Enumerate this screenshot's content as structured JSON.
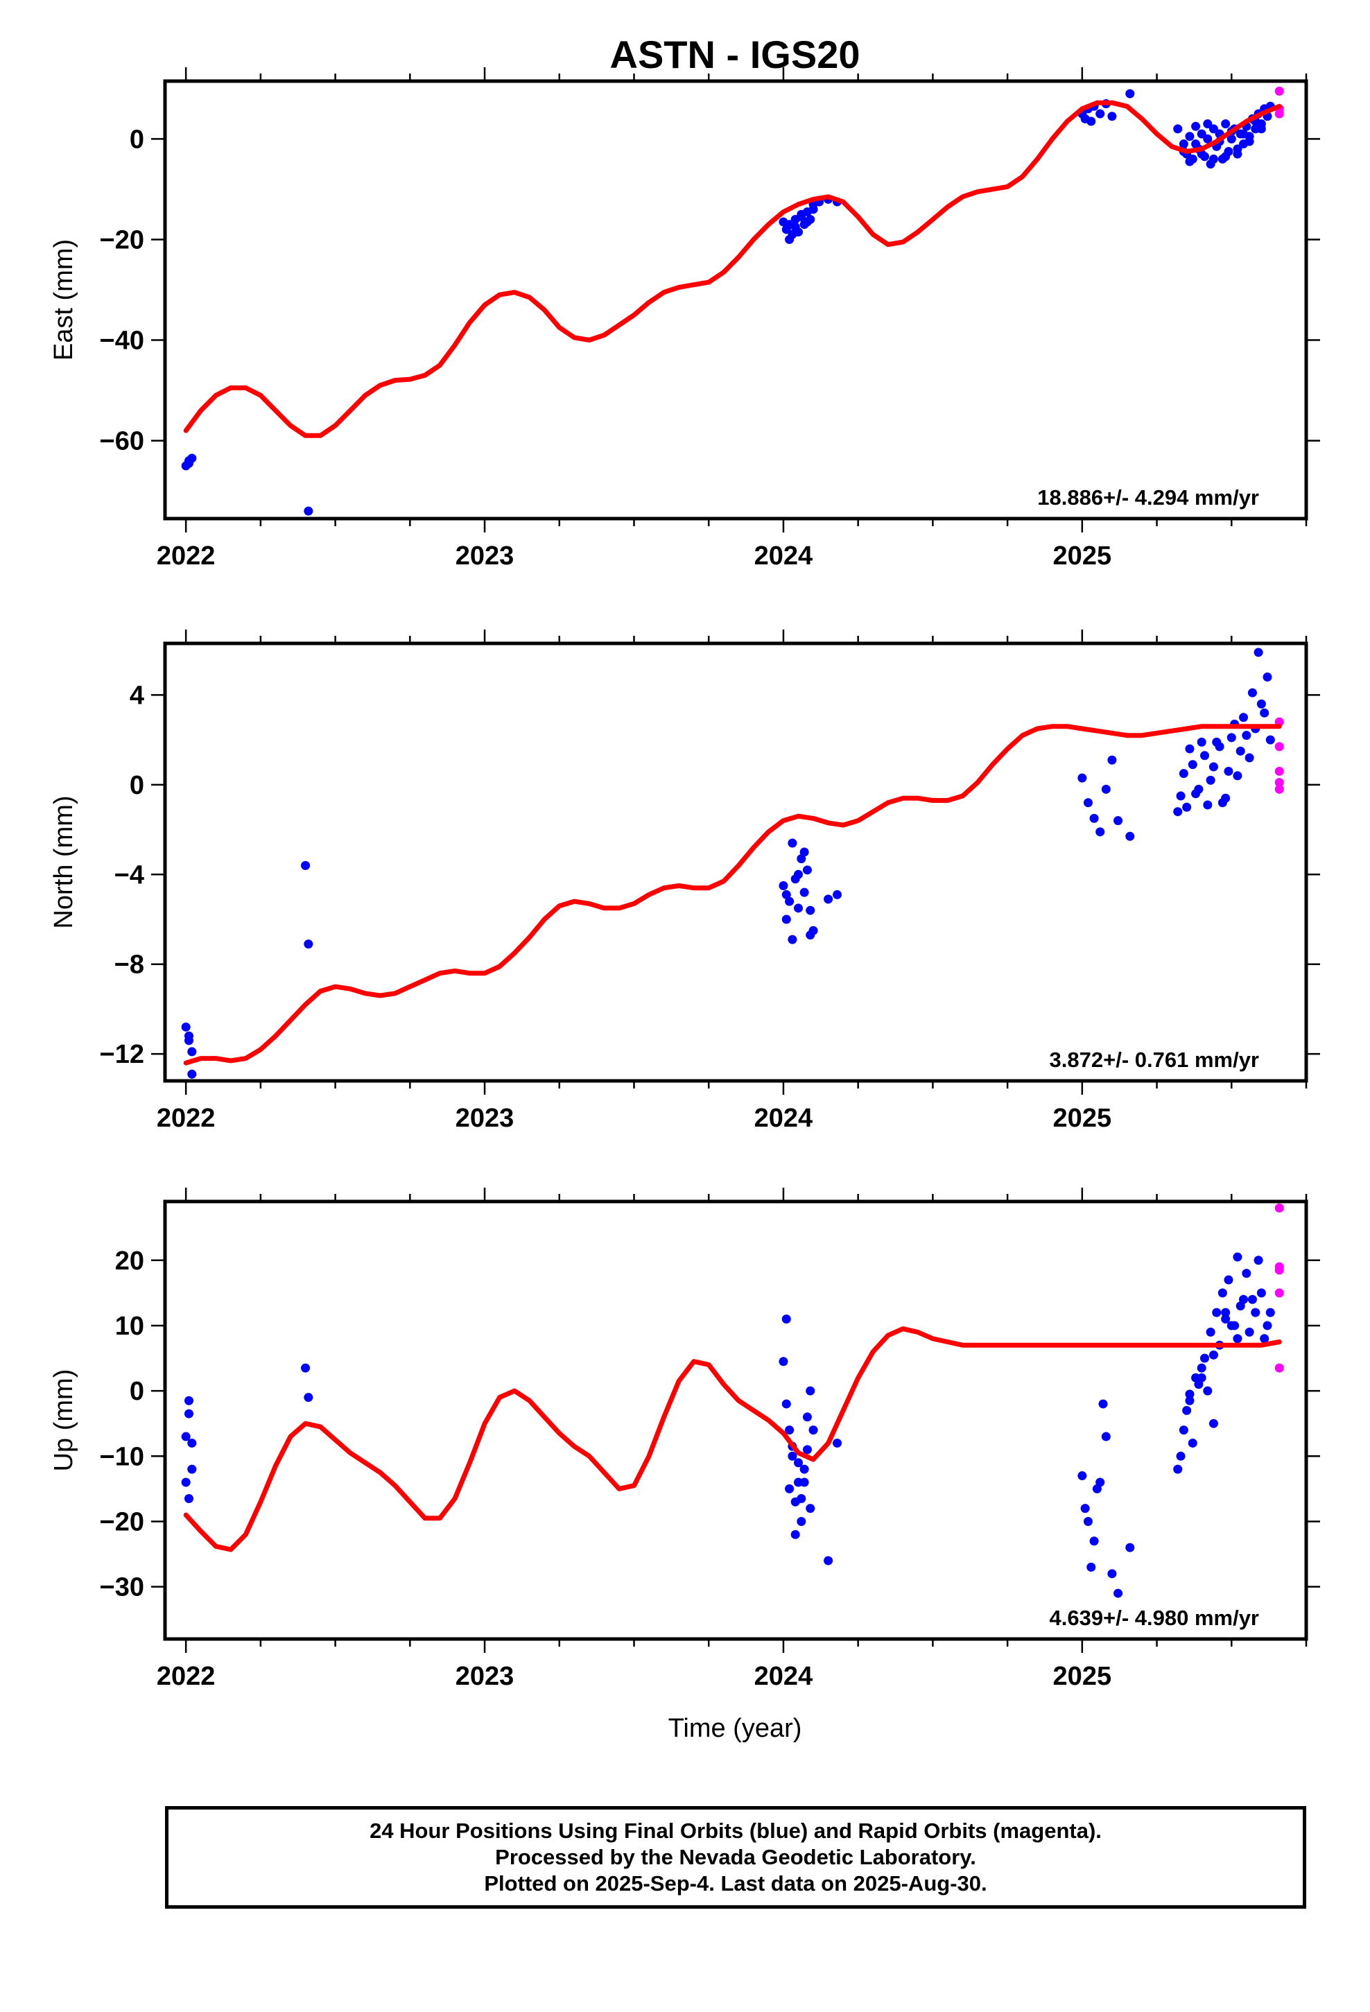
{
  "title": "ASTN - IGS20",
  "xlabel": "Time (year)",
  "footer": {
    "line1": "24 Hour Positions Using Final Orbits (blue) and Rapid Orbits (magenta).",
    "line2": "Processed by the Nevada Geodetic Laboratory.",
    "line3": "Plotted on 2025-Sep-4. Last data on 2025-Aug-30."
  },
  "colors": {
    "final": "#0000ff",
    "rapid": "#ff00ff",
    "model": "#ff0000"
  },
  "chart_data": [
    {
      "type": "scatter",
      "panel": "east",
      "ylabel": "East (mm)",
      "xlim": [
        2021.93,
        2025.75
      ],
      "ylim": [
        -75.5,
        11.5
      ],
      "xticks": [
        2022,
        2023,
        2024,
        2025
      ],
      "yticks": [
        -60,
        -40,
        -20,
        0
      ],
      "rate_label": "18.886+/- 4.294 mm/yr",
      "model": {
        "x": [
          2022.0,
          2022.05,
          2022.1,
          2022.15,
          2022.2,
          2022.25,
          2022.3,
          2022.35,
          2022.4,
          2022.45,
          2022.5,
          2022.55,
          2022.6,
          2022.65,
          2022.7,
          2022.75,
          2022.8,
          2022.85,
          2022.9,
          2022.95,
          2023.0,
          2023.05,
          2023.1,
          2023.15,
          2023.2,
          2023.25,
          2023.3,
          2023.35,
          2023.4,
          2023.45,
          2023.5,
          2023.55,
          2023.6,
          2023.65,
          2023.7,
          2023.75,
          2023.8,
          2023.85,
          2023.9,
          2023.95,
          2024.0,
          2024.05,
          2024.1,
          2024.15,
          2024.2,
          2024.25,
          2024.3,
          2024.35,
          2024.4,
          2024.45,
          2024.5,
          2024.55,
          2024.6,
          2024.65,
          2024.7,
          2024.75,
          2024.8,
          2024.85,
          2024.9,
          2024.95,
          2025.0,
          2025.05,
          2025.1,
          2025.15,
          2025.2,
          2025.25,
          2025.3,
          2025.35,
          2025.4,
          2025.45,
          2025.5,
          2025.55,
          2025.6,
          2025.66
        ],
        "y": [
          -58,
          -54,
          -51,
          -49.5,
          -49.5,
          -51,
          -54,
          -57,
          -59,
          -59,
          -57,
          -54,
          -51,
          -49,
          -48,
          -47.8,
          -47,
          -45,
          -41,
          -36.5,
          -33,
          -31,
          -30.5,
          -31.5,
          -34,
          -37.5,
          -39.5,
          -40,
          -39,
          -37,
          -35,
          -32.5,
          -30.5,
          -29.5,
          -29,
          -28.5,
          -26.5,
          -23.5,
          -20,
          -17,
          -14.5,
          -13,
          -12,
          -11.5,
          -12.5,
          -15.5,
          -19,
          -21,
          -20.5,
          -18.5,
          -16,
          -13.5,
          -11.5,
          -10.5,
          -10,
          -9.5,
          -7.5,
          -4,
          0,
          3.5,
          6,
          7.2,
          7.2,
          6.5,
          4,
          1,
          -1.5,
          -2.5,
          -2,
          -0.5,
          1.5,
          3.5,
          5,
          6.5
        ]
      },
      "points": {
        "x": [
          2022.0,
          2022.01,
          2022.02,
          2022.01,
          2022.41,
          2024.0,
          2024.01,
          2024.02,
          2024.03,
          2024.04,
          2024.05,
          2024.06,
          2024.07,
          2024.08,
          2024.09,
          2024.1,
          2024.02,
          2024.04,
          2024.06,
          2024.08,
          2024.1,
          2024.12,
          2024.15,
          2024.18,
          2025.0,
          2025.01,
          2025.02,
          2025.03,
          2025.04,
          2025.06,
          2025.08,
          2025.1,
          2025.16,
          2025.32,
          2025.34,
          2025.35,
          2025.36,
          2025.37,
          2025.38,
          2025.39,
          2025.4,
          2025.41,
          2025.42,
          2025.43,
          2025.44,
          2025.45,
          2025.46,
          2025.47,
          2025.48,
          2025.49,
          2025.5,
          2025.51,
          2025.52,
          2025.53,
          2025.54,
          2025.55,
          2025.56,
          2025.57,
          2025.58,
          2025.59,
          2025.6,
          2025.61,
          2025.62,
          2025.63,
          2025.34,
          2025.36,
          2025.38,
          2025.4,
          2025.42,
          2025.44,
          2025.46,
          2025.48,
          2025.5,
          2025.52,
          2025.54,
          2025.56,
          2025.58,
          2025.6
        ],
        "y": [
          -65,
          -64,
          -63.5,
          -64.5,
          -74,
          -16.5,
          -18,
          -17,
          -19,
          -16,
          -18.5,
          -15.5,
          -17,
          -14.5,
          -16,
          -14,
          -20,
          -17.5,
          -15,
          -16.5,
          -13,
          -12.5,
          -12,
          -12.5,
          5,
          4,
          6,
          3.5,
          6.5,
          5,
          7,
          4.5,
          9,
          2,
          -1,
          -3,
          0.5,
          -4,
          2.5,
          -2,
          1,
          -3.5,
          0,
          -5,
          2,
          -1.5,
          1,
          -4,
          3,
          -2.5,
          0,
          2,
          -3,
          1,
          -1,
          2.5,
          0.5,
          4,
          2,
          5,
          3,
          6,
          4.5,
          6.5,
          -2.5,
          -4.5,
          -1,
          -3,
          3,
          -4,
          -0.5,
          -3.5,
          1.5,
          -2,
          1,
          -0.5,
          3.5,
          2
        ]
      },
      "rapid": {
        "x": [
          2025.66,
          2025.66,
          2025.66
        ],
        "y": [
          9.5,
          6,
          5
        ]
      }
    },
    {
      "type": "scatter",
      "panel": "north",
      "ylabel": "North (mm)",
      "xlim": [
        2021.93,
        2025.75
      ],
      "ylim": [
        -13.2,
        6.3
      ],
      "xticks": [
        2022,
        2023,
        2024,
        2025
      ],
      "yticks": [
        -12,
        -8,
        -4,
        0,
        4
      ],
      "rate_label": "3.872+/- 0.761 mm/yr",
      "model": {
        "x": [
          2022.0,
          2022.05,
          2022.1,
          2022.15,
          2022.2,
          2022.25,
          2022.3,
          2022.35,
          2022.4,
          2022.45,
          2022.5,
          2022.55,
          2022.6,
          2022.65,
          2022.7,
          2022.75,
          2022.8,
          2022.85,
          2022.9,
          2022.95,
          2023.0,
          2023.05,
          2023.1,
          2023.15,
          2023.2,
          2023.25,
          2023.3,
          2023.35,
          2023.4,
          2023.45,
          2023.5,
          2023.55,
          2023.6,
          2023.65,
          2023.7,
          2023.75,
          2023.8,
          2023.85,
          2023.9,
          2023.95,
          2024.0,
          2024.05,
          2024.1,
          2024.15,
          2024.2,
          2024.25,
          2024.3,
          2024.35,
          2024.4,
          2024.45,
          2024.5,
          2024.55,
          2024.6,
          2024.65,
          2024.7,
          2024.75,
          2024.8,
          2024.85,
          2024.9,
          2024.95,
          2025.0,
          2025.05,
          2025.1,
          2025.15,
          2025.2,
          2025.25,
          2025.3,
          2025.35,
          2025.4,
          2025.45,
          2025.5,
          2025.55,
          2025.6,
          2025.66
        ],
        "y": [
          -12.4,
          -12.2,
          -12.2,
          -12.3,
          -12.2,
          -11.8,
          -11.2,
          -10.5,
          -9.8,
          -9.2,
          -9.0,
          -9.1,
          -9.3,
          -9.4,
          -9.3,
          -9.0,
          -8.7,
          -8.4,
          -8.3,
          -8.4,
          -8.4,
          -8.1,
          -7.5,
          -6.8,
          -6.0,
          -5.4,
          -5.2,
          -5.3,
          -5.5,
          -5.5,
          -5.3,
          -4.9,
          -4.6,
          -4.5,
          -4.6,
          -4.6,
          -4.3,
          -3.6,
          -2.8,
          -2.1,
          -1.6,
          -1.4,
          -1.5,
          -1.7,
          -1.8,
          -1.6,
          -1.2,
          -0.8,
          -0.6,
          -0.6,
          -0.7,
          -0.7,
          -0.5,
          0.1,
          0.9,
          1.6,
          2.2,
          2.5,
          2.6,
          2.6,
          2.5,
          2.4,
          2.3,
          2.2,
          2.2,
          2.3,
          2.4,
          2.5,
          2.6,
          2.6,
          2.6,
          2.6,
          2.6,
          2.6
        ]
      },
      "points": {
        "x": [
          2022.0,
          2022.01,
          2022.02,
          2022.01,
          2022.02,
          2022.4,
          2022.41,
          2024.0,
          2024.01,
          2024.02,
          2024.03,
          2024.04,
          2024.05,
          2024.06,
          2024.07,
          2024.08,
          2024.09,
          2024.1,
          2024.01,
          2024.03,
          2024.05,
          2024.07,
          2024.09,
          2024.15,
          2024.18,
          2025.0,
          2025.02,
          2025.04,
          2025.06,
          2025.08,
          2025.1,
          2025.12,
          2025.16,
          2025.32,
          2025.34,
          2025.36,
          2025.38,
          2025.4,
          2025.42,
          2025.44,
          2025.46,
          2025.48,
          2025.5,
          2025.52,
          2025.54,
          2025.56,
          2025.58,
          2025.6,
          2025.62,
          2025.33,
          2025.35,
          2025.37,
          2025.39,
          2025.41,
          2025.43,
          2025.45,
          2025.47,
          2025.49,
          2025.51,
          2025.53,
          2025.55,
          2025.57,
          2025.59,
          2025.61,
          2025.63
        ],
        "y": [
          -10.8,
          -11.4,
          -11.9,
          -11.2,
          -12.9,
          -3.6,
          -7.1,
          -4.5,
          -6.0,
          -5.2,
          -6.9,
          -4.2,
          -5.5,
          -3.3,
          -4.8,
          -3.8,
          -5.6,
          -6.5,
          -4.9,
          -2.6,
          -4.0,
          -3.0,
          -6.7,
          -5.1,
          -4.9,
          0.3,
          -0.8,
          -1.5,
          -2.1,
          -0.2,
          1.1,
          -1.6,
          -2.3,
          -1.2,
          0.5,
          1.6,
          -0.4,
          1.9,
          -0.9,
          0.8,
          1.7,
          -0.6,
          2.1,
          0.4,
          3.0,
          1.2,
          2.5,
          3.6,
          4.8,
          -0.5,
          -1.0,
          0.9,
          -0.2,
          1.3,
          0.2,
          1.9,
          -0.8,
          0.6,
          2.7,
          1.5,
          2.2,
          4.1,
          5.9,
          3.2,
          2.0
        ]
      },
      "rapid": {
        "x": [
          2025.66,
          2025.66,
          2025.66,
          2025.66,
          2025.66
        ],
        "y": [
          2.8,
          1.7,
          0.6,
          0.1,
          -0.2
        ]
      }
    },
    {
      "type": "scatter",
      "panel": "up",
      "ylabel": "Up (mm)",
      "xlim": [
        2021.93,
        2025.75
      ],
      "ylim": [
        -38,
        29
      ],
      "xticks": [
        2022,
        2023,
        2024,
        2025
      ],
      "yticks": [
        -30,
        -20,
        -10,
        0,
        10,
        20
      ],
      "rate_label": "4.639+/- 4.980 mm/yr",
      "model": {
        "x": [
          2022.0,
          2022.05,
          2022.1,
          2022.15,
          2022.2,
          2022.25,
          2022.3,
          2022.35,
          2022.4,
          2022.45,
          2022.5,
          2022.55,
          2022.6,
          2022.65,
          2022.7,
          2022.75,
          2022.8,
          2022.85,
          2022.9,
          2022.95,
          2023.0,
          2023.05,
          2023.1,
          2023.15,
          2023.2,
          2023.25,
          2023.3,
          2023.35,
          2023.4,
          2023.45,
          2023.5,
          2023.55,
          2023.6,
          2023.65,
          2023.7,
          2023.75,
          2023.8,
          2023.85,
          2023.9,
          2023.95,
          2024.0,
          2024.05,
          2024.1,
          2024.15,
          2024.2,
          2024.25,
          2024.3,
          2024.35,
          2024.4,
          2024.45,
          2024.5,
          2024.55,
          2024.6,
          2024.65,
          2024.7,
          2024.75,
          2024.8,
          2024.85,
          2024.9,
          2024.95,
          2025.0,
          2025.05,
          2025.1,
          2025.15,
          2025.2,
          2025.25,
          2025.3,
          2025.35,
          2025.4,
          2025.45,
          2025.5,
          2025.55,
          2025.6,
          2025.66
        ],
        "y": [
          -19,
          -21.5,
          -23.8,
          -24.3,
          -22,
          -17,
          -11.5,
          -7,
          -5,
          -5.5,
          -7.5,
          -9.5,
          -11,
          -12.5,
          -14.5,
          -17,
          -19.5,
          -19.5,
          -16.5,
          -11,
          -5,
          -1,
          0,
          -1.5,
          -4,
          -6.5,
          -8.5,
          -10,
          -12.5,
          -15,
          -14.5,
          -10,
          -4,
          1.5,
          4.5,
          4,
          1,
          -1.5,
          -3,
          -4.5,
          -6.5,
          -9.5,
          -10.5,
          -8,
          -3,
          2,
          6,
          8.5,
          9.5,
          9,
          8,
          7.5,
          7,
          7,
          7,
          7,
          7,
          7,
          7,
          7,
          7,
          7,
          7,
          7,
          7,
          7,
          7,
          7,
          7,
          7,
          7,
          7,
          7,
          7.5
        ]
      },
      "points": {
        "x": [
          2022.0,
          2022.0,
          2022.01,
          2022.01,
          2022.02,
          2022.02,
          2022.01,
          2022.4,
          2022.41,
          2024.0,
          2024.01,
          2024.02,
          2024.03,
          2024.04,
          2024.05,
          2024.06,
          2024.07,
          2024.08,
          2024.09,
          2024.1,
          2024.01,
          2024.03,
          2024.05,
          2024.07,
          2024.09,
          2024.02,
          2024.04,
          2024.06,
          2024.08,
          2024.15,
          2024.18,
          2025.0,
          2025.01,
          2025.02,
          2025.03,
          2025.04,
          2025.05,
          2025.06,
          2025.07,
          2025.08,
          2025.1,
          2025.12,
          2025.16,
          2025.32,
          2025.34,
          2025.36,
          2025.38,
          2025.4,
          2025.42,
          2025.44,
          2025.46,
          2025.48,
          2025.5,
          2025.52,
          2025.54,
          2025.56,
          2025.58,
          2025.6,
          2025.62,
          2025.33,
          2025.35,
          2025.37,
          2025.39,
          2025.41,
          2025.43,
          2025.45,
          2025.47,
          2025.49,
          2025.51,
          2025.53,
          2025.55,
          2025.57,
          2025.59,
          2025.61,
          2025.63,
          2025.36,
          2025.4,
          2025.44,
          2025.48,
          2025.52
        ],
        "y": [
          -14,
          -7,
          -1.5,
          -3.5,
          -8,
          -12,
          -16.5,
          3.5,
          -1,
          4.5,
          -2,
          -6,
          -8.5,
          -17,
          -11,
          -20,
          -14,
          -9,
          -18,
          -6,
          11,
          -10,
          -14,
          -12,
          0,
          -15,
          -22,
          -16.5,
          -4,
          -26,
          -8,
          -13,
          -18,
          -20,
          -27,
          -23,
          -15,
          -14,
          -2,
          -7,
          -28,
          -31,
          -24,
          -12,
          -6,
          -1.5,
          2,
          3.5,
          0,
          -5,
          7,
          12,
          10,
          8,
          14,
          9,
          12,
          15,
          10,
          -10,
          -3,
          -8,
          1,
          5,
          9,
          12,
          15,
          17,
          10,
          13,
          18,
          14,
          20,
          8,
          12,
          -0.5,
          2,
          5.5,
          11,
          20.5
        ]
      },
      "rapid": {
        "x": [
          2025.66,
          2025.66,
          2025.66,
          2025.66,
          2025.66
        ],
        "y": [
          28,
          19,
          18.5,
          15,
          3.5
        ]
      }
    }
  ]
}
